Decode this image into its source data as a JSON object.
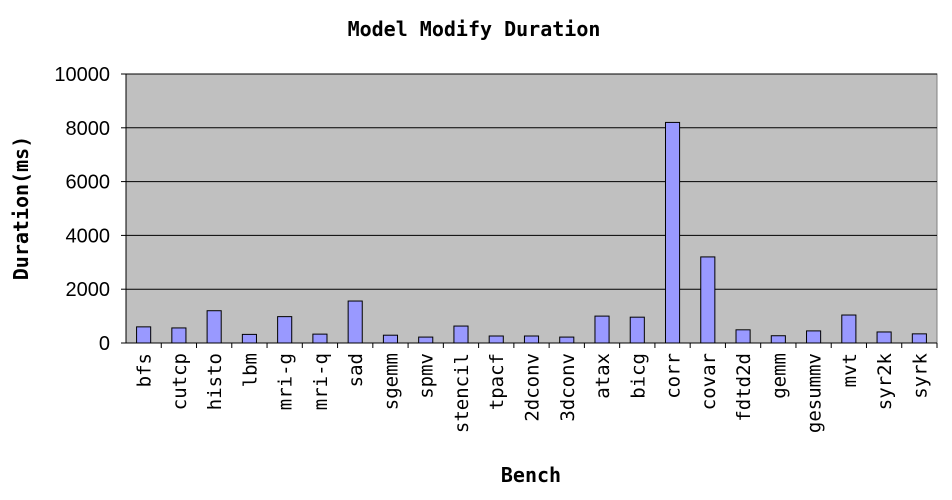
{
  "chart_data": {
    "type": "bar",
    "title": "Model Modify Duration",
    "xlabel": "Bench",
    "ylabel": "Duration(ms)",
    "ylim": [
      0,
      10000
    ],
    "yticks": [
      "0",
      "2000",
      "4000",
      "6000",
      "8000",
      "10000"
    ],
    "grid": true,
    "legend": "none",
    "categories": [
      "bfs",
      "cutcp",
      "histo",
      "lbm",
      "mri-g",
      "mri-q",
      "sad",
      "sgemm",
      "spmv",
      "stencil",
      "tpacf",
      "2dconv",
      "3dconv",
      "atax",
      "bicg",
      "corr",
      "covar",
      "fdtd2d",
      "gemm",
      "gesummv",
      "mvt",
      "syr2k",
      "syrk"
    ],
    "values": [
      600,
      560,
      1200,
      320,
      980,
      330,
      1560,
      290,
      220,
      630,
      260,
      260,
      220,
      1000,
      960,
      8200,
      3200,
      490,
      270,
      450,
      1040,
      410,
      340
    ],
    "colors": {
      "bar_fill": "#9999ff",
      "bar_stroke": "#000000",
      "plot_bg": "#c0c0c0",
      "grid": "#000000"
    }
  }
}
